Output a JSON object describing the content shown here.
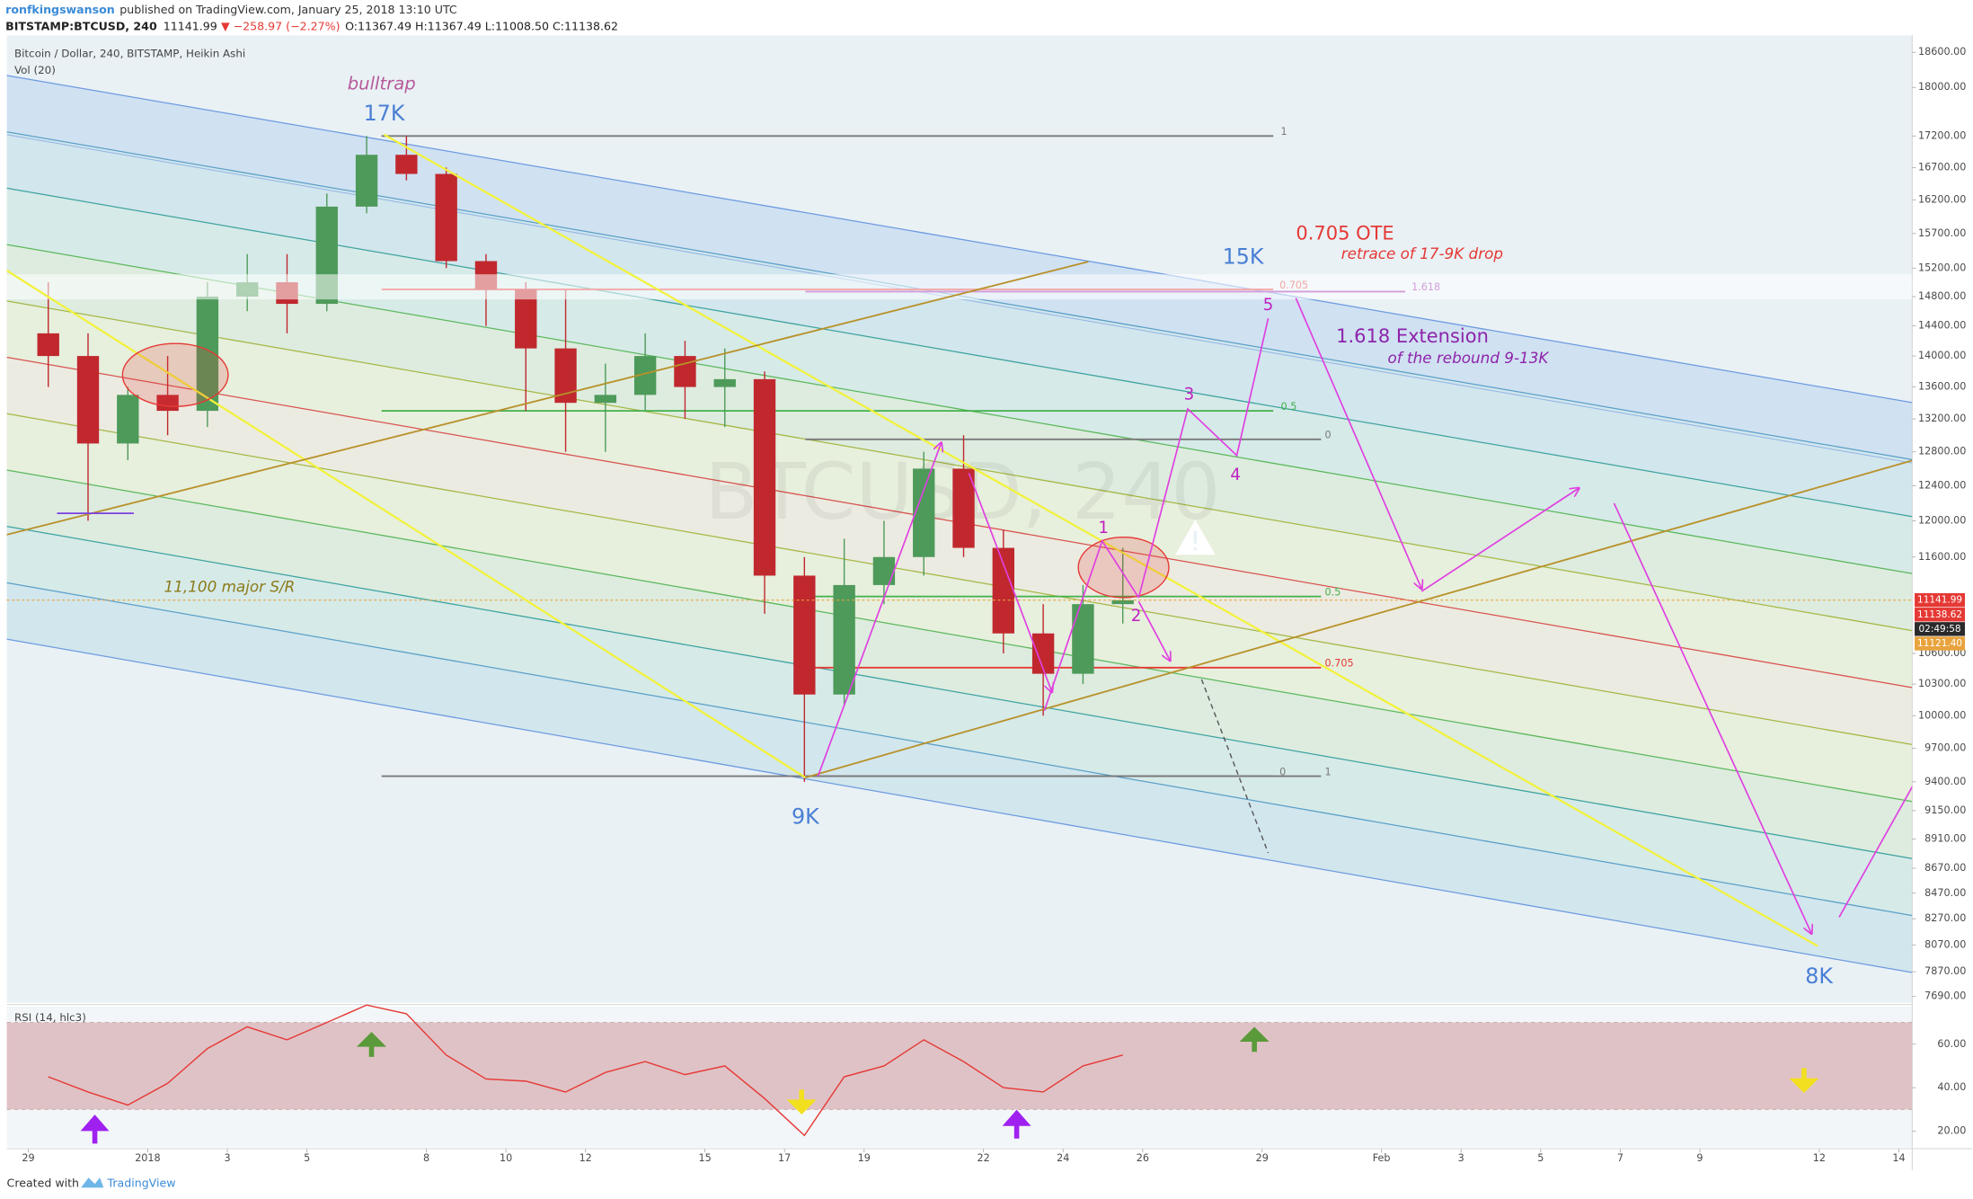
{
  "header": {
    "user": "ronfkingswanson",
    "published": "published on TradingView.com, January 25, 2018 13:10 UTC",
    "symbol": "BITSTAMP:BTCUSD, 240",
    "last": "11141.99",
    "change": "▼ −258.97 (−2.27%)",
    "ohlc": "O:11367.49 H:11367.49 L:11008.50 C:11138.62"
  },
  "footer": {
    "created": "Created with",
    "brand": "TradingView"
  },
  "chart_data": [
    {
      "type": "candlestick",
      "title": "Bitcoin / Dollar, 240, BITSTAMP, Heikin Ashi",
      "indicator_label": "Vol (20)",
      "watermark": "BTCUSD, 240",
      "x": [
        "2017-12-29T12:00",
        "2017-12-30T12:00",
        "2017-12-31T12:00",
        "2018-01-01T12:00",
        "2018-01-02T12:00",
        "2018-01-03T12:00",
        "2018-01-04T12:00",
        "2018-01-05T12:00",
        "2018-01-06T12:00",
        "2018-01-07T12:00",
        "2018-01-08T12:00",
        "2018-01-09T12:00",
        "2018-01-10T12:00",
        "2018-01-11T12:00",
        "2018-01-12T12:00",
        "2018-01-13T12:00",
        "2018-01-14T12:00",
        "2018-01-15T12:00",
        "2018-01-16T12:00",
        "2018-01-17T12:00",
        "2018-01-18T12:00",
        "2018-01-19T12:00",
        "2018-01-20T12:00",
        "2018-01-21T12:00",
        "2018-01-22T12:00",
        "2018-01-23T12:00",
        "2018-01-24T12:00",
        "2018-01-25T12:00"
      ],
      "open": [
        14300,
        14000,
        12900,
        13500,
        13300,
        14800,
        15000,
        14700,
        16100,
        16900,
        16600,
        15300,
        14900,
        14100,
        13400,
        13500,
        14000,
        13600,
        13700,
        11400,
        10200,
        11300,
        11600,
        12600,
        11700,
        10800,
        10400,
        11100
      ],
      "high": [
        15000,
        14300,
        13600,
        14000,
        15000,
        15400,
        15400,
        16300,
        17200,
        17200,
        16700,
        15400,
        15000,
        14900,
        13900,
        14300,
        14200,
        14100,
        13800,
        11600,
        11800,
        12000,
        12800,
        13000,
        11900,
        11100,
        11300,
        11700
      ],
      "low": [
        13600,
        12000,
        12700,
        13000,
        13100,
        14600,
        14300,
        14600,
        16000,
        16500,
        15200,
        14400,
        13300,
        12800,
        12800,
        13300,
        13200,
        13100,
        11000,
        9400,
        10100,
        11100,
        11400,
        11600,
        10600,
        10000,
        10300,
        10900
      ],
      "close": [
        14000,
        12900,
        13500,
        13300,
        14800,
        15000,
        14700,
        16100,
        16900,
        16600,
        15300,
        14900,
        14100,
        13400,
        13500,
        14000,
        13600,
        13700,
        11400,
        10200,
        11300,
        11600,
        12600,
        11700,
        10800,
        10400,
        11100,
        11140
      ],
      "up_color": "#4e9a5a",
      "down_color": "#c0282e",
      "log": true,
      "xlim": [
        "2017-12-28T11:00",
        "2018-02-14T08:00"
      ],
      "xticks": [
        {
          "value": "2017-12-29",
          "label": "29"
        },
        {
          "value": "2018-01-01",
          "label": "2018"
        },
        {
          "value": "2018-01-03",
          "label": "3"
        },
        {
          "value": "2018-01-05",
          "label": "5"
        },
        {
          "value": "2018-01-08",
          "label": "8"
        },
        {
          "value": "2018-01-10",
          "label": "10"
        },
        {
          "value": "2018-01-12",
          "label": "12"
        },
        {
          "value": "2018-01-15",
          "label": "15"
        },
        {
          "value": "2018-01-17",
          "label": "17"
        },
        {
          "value": "2018-01-19",
          "label": "19"
        },
        {
          "value": "2018-01-22",
          "label": "22"
        },
        {
          "value": "2018-01-24",
          "label": "24"
        },
        {
          "value": "2018-01-26",
          "label": "26"
        },
        {
          "value": "2018-01-29",
          "label": "29"
        },
        {
          "value": "2018-02-01",
          "label": "Feb"
        },
        {
          "value": "2018-02-03",
          "label": "3"
        },
        {
          "value": "2018-02-05",
          "label": "5"
        },
        {
          "value": "2018-02-07",
          "label": "7"
        },
        {
          "value": "2018-02-09",
          "label": "9"
        },
        {
          "value": "2018-02-12",
          "label": "12"
        },
        {
          "value": "2018-02-14",
          "label": "14"
        }
      ],
      "ylim": [
        7645,
        18900
      ],
      "yticks": [
        {
          "value": 18600,
          "label": "18600.00"
        },
        {
          "value": 18000,
          "label": "18000.00"
        },
        {
          "value": 17200,
          "label": "17200.00"
        },
        {
          "value": 16700,
          "label": "16700.00"
        },
        {
          "value": 16200,
          "label": "16200.00"
        },
        {
          "value": 15700,
          "label": "15700.00"
        },
        {
          "value": 15200,
          "label": "15200.00"
        },
        {
          "value": 14800,
          "label": "14800.00"
        },
        {
          "value": 14400,
          "label": "14400.00"
        },
        {
          "value": 14000,
          "label": "14000.00"
        },
        {
          "value": 13600,
          "label": "13600.00"
        },
        {
          "value": 13200,
          "label": "13200.00"
        },
        {
          "value": 12800,
          "label": "12800.00"
        },
        {
          "value": 12400,
          "label": "12400.00"
        },
        {
          "value": 12000,
          "label": "12000.00"
        },
        {
          "value": 11600,
          "label": "11600.00"
        },
        {
          "value": 10600,
          "label": "10600.00"
        },
        {
          "value": 10300,
          "label": "10300.00"
        },
        {
          "value": 10000,
          "label": "10000.00"
        },
        {
          "value": 9700,
          "label": "9700.00"
        },
        {
          "value": 9400,
          "label": "9400.00"
        },
        {
          "value": 9150,
          "label": "9150.00"
        },
        {
          "value": 8910,
          "label": "8910.00"
        },
        {
          "value": 8670,
          "label": "8670.00"
        },
        {
          "value": 8470,
          "label": "8470.00"
        },
        {
          "value": 8270,
          "label": "8270.00"
        },
        {
          "value": 8070,
          "label": "8070.00"
        },
        {
          "value": 7870,
          "label": "7870.00"
        },
        {
          "value": 7690,
          "label": "7690.00"
        }
      ],
      "price_badges": [
        {
          "value": 11141.99,
          "color": "#e53935"
        },
        {
          "value": 11138.62,
          "color": "#e53935"
        },
        {
          "label": "02:49:58",
          "color": "#2a2a2a"
        },
        {
          "value": 11121.4,
          "label": "11121.40",
          "color": "#e8a33d"
        }
      ],
      "levels": [
        {
          "label": "1",
          "value": 17200,
          "color": "#787878"
        },
        {
          "label": "0.705",
          "value": 14900,
          "color": "#e53935"
        },
        {
          "label": "1.618",
          "value": 14870,
          "color": "#9c27b0"
        },
        {
          "label": "0.5",
          "value": 13300,
          "color": "#43b04a"
        },
        {
          "label": "0",
          "value": 12950,
          "color": "#787878"
        },
        {
          "label": "0.5",
          "value": 11180,
          "color": "#43b04a"
        },
        {
          "label": "0.705",
          "value": 10460,
          "color": "#e53935"
        },
        {
          "label": "0",
          "value": 9450,
          "color": "#787878"
        },
        {
          "label": "1",
          "value": 9450,
          "color": "#787878"
        }
      ],
      "annotations": [
        {
          "text": "bulltrap",
          "color": "#b85a9a"
        },
        {
          "text": "17K",
          "color": "#4a7fd4"
        },
        {
          "text": "9K",
          "color": "#4a7fd4"
        },
        {
          "text": "15K",
          "color": "#4a7fd4"
        },
        {
          "text": "8K",
          "color": "#4a7fd4"
        },
        {
          "text": "0.705 OTE",
          "color": "#e53935"
        },
        {
          "text": "retrace of 17-9K drop",
          "color": "#e53935"
        },
        {
          "text": "1.618 Extension",
          "color": "#8e24aa"
        },
        {
          "text": "of the rebound 9-13K",
          "color": "#8e24aa"
        },
        {
          "text": "11,100 major S/R",
          "color": "#8b7a1a"
        },
        {
          "text": "1",
          "color": "#c020c0"
        },
        {
          "text": "2",
          "color": "#c020c0"
        },
        {
          "text": "3",
          "color": "#c020c0"
        },
        {
          "text": "4",
          "color": "#c020c0"
        },
        {
          "text": "5",
          "color": "#c020c0"
        }
      ]
    },
    {
      "type": "line",
      "title": "RSI (14, hlc3)",
      "color": "#e53935",
      "band": [
        30,
        70
      ],
      "x": [
        "2017-12-29T12:00",
        "2017-12-30T12:00",
        "2017-12-31T12:00",
        "2018-01-01T12:00",
        "2018-01-02T12:00",
        "2018-01-03T12:00",
        "2018-01-04T12:00",
        "2018-01-05T12:00",
        "2018-01-06T12:00",
        "2018-01-07T12:00",
        "2018-01-08T12:00",
        "2018-01-09T12:00",
        "2018-01-10T12:00",
        "2018-01-11T12:00",
        "2018-01-12T12:00",
        "2018-01-13T12:00",
        "2018-01-14T12:00",
        "2018-01-15T12:00",
        "2018-01-16T12:00",
        "2018-01-17T12:00",
        "2018-01-18T12:00",
        "2018-01-19T12:00",
        "2018-01-20T12:00",
        "2018-01-21T12:00",
        "2018-01-22T12:00",
        "2018-01-23T12:00",
        "2018-01-24T12:00",
        "2018-01-25T12:00"
      ],
      "values": [
        45,
        38,
        32,
        42,
        58,
        68,
        62,
        70,
        78,
        74,
        55,
        44,
        43,
        38,
        47,
        52,
        46,
        50,
        35,
        18,
        45,
        50,
        62,
        52,
        40,
        38,
        50,
        55
      ],
      "ylim": [
        12.5,
        78.5
      ],
      "yticks": [
        {
          "value": 60,
          "label": "60.00"
        },
        {
          "value": 40,
          "label": "40.00"
        },
        {
          "value": 20,
          "label": "20.00"
        }
      ]
    }
  ]
}
